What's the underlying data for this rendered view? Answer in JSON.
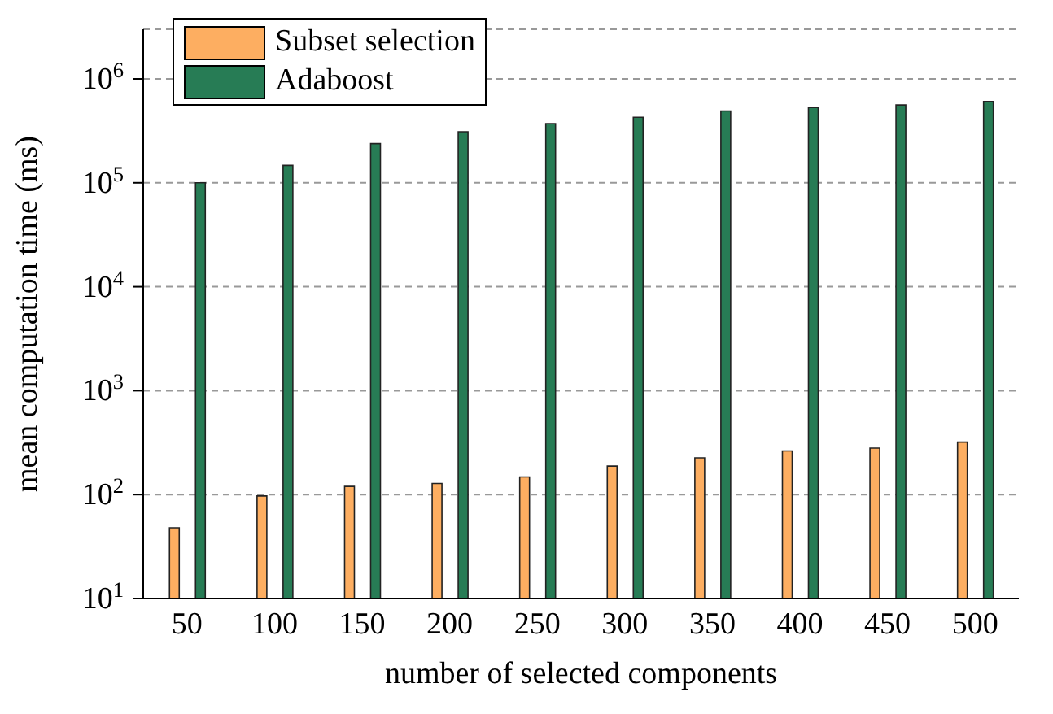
{
  "chart_data": {
    "type": "bar",
    "xlabel": "number of selected components",
    "ylabel": "mean computation time (ms)",
    "categories": [
      "50",
      "100",
      "150",
      "200",
      "250",
      "300",
      "350",
      "400",
      "450",
      "500"
    ],
    "series": [
      {
        "name": "Subset selection",
        "color": "#fdae61",
        "values": [
          48,
          97,
          120,
          128,
          148,
          188,
          226,
          263,
          280,
          320
        ]
      },
      {
        "name": "Adaboost",
        "color": "#277c55",
        "values": [
          100000,
          147000,
          238000,
          310000,
          370000,
          427000,
          490000,
          530000,
          560000,
          605000
        ]
      }
    ],
    "log": true,
    "ylim": [
      10,
      3000000
    ],
    "yticks": [
      {
        "value": 10,
        "label": "10$^{1}$"
      },
      {
        "value": 100,
        "label": "10$^{2}$"
      },
      {
        "value": 1000,
        "label": "10$^{3}$"
      },
      {
        "value": 10000,
        "label": "10$^{4}$"
      },
      {
        "value": 100000,
        "label": "10$^{5}$"
      },
      {
        "value": 1000000,
        "label": "10$^{6}$"
      }
    ],
    "grid": "y",
    "legend": "top left"
  }
}
